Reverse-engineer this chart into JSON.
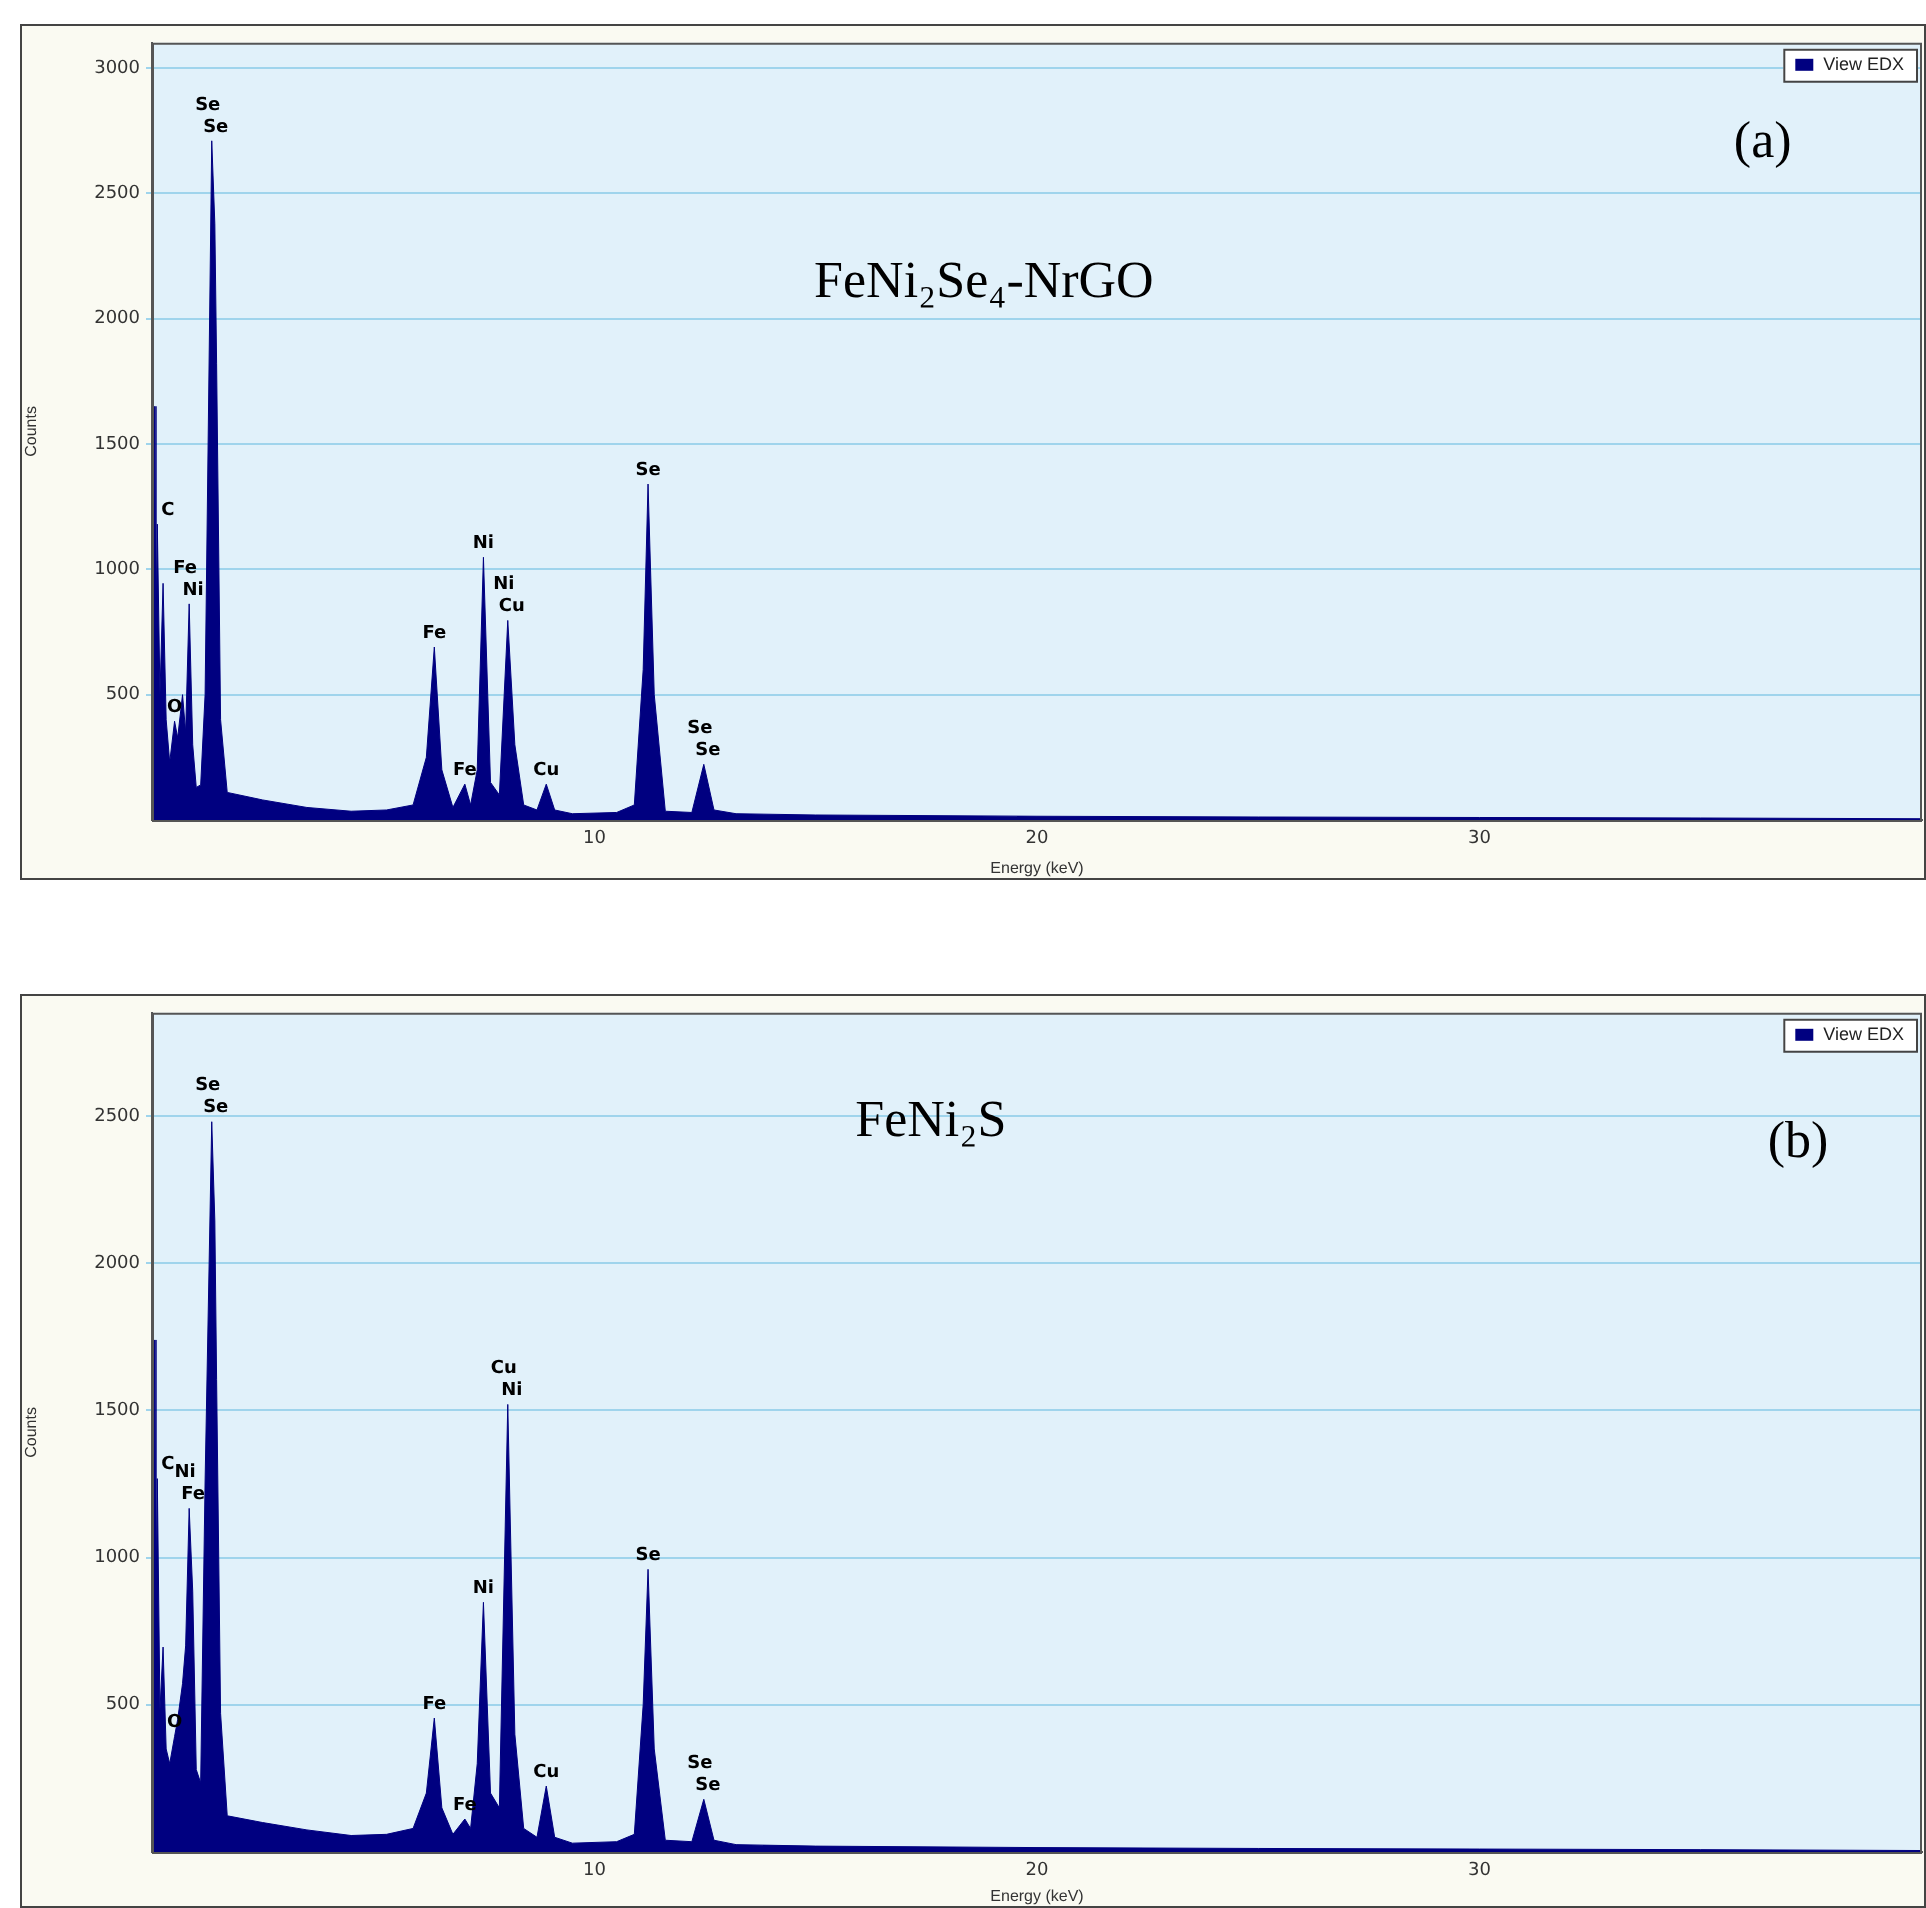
{
  "chart_data": [
    {
      "type": "area",
      "title": "FeNi₂Se₄-NrGO",
      "xlabel": "Energy (keV)",
      "ylabel": "Counts",
      "xlim": [
        0,
        40
      ],
      "xticks": [
        10,
        20,
        30
      ],
      "ylim": [
        0,
        3100
      ],
      "yticks": [
        500,
        1000,
        1500,
        2000,
        2500,
        3000
      ],
      "grid": "y",
      "legend": "top right",
      "marker": "none",
      "series": [
        {
          "name": "View EDX",
          "color": "#000080",
          "x": [
            0,
            0.06,
            0.09,
            0.12,
            0.18,
            0.25,
            0.32,
            0.4,
            0.51,
            0.58,
            0.69,
            0.76,
            0.84,
            0.92,
            1.0,
            1.1,
            1.2,
            1.35,
            1.42,
            1.46,
            1.55,
            1.7,
            2.5,
            3.5,
            4.5,
            5.3,
            5.9,
            6.2,
            6.38,
            6.55,
            6.8,
            7.07,
            7.2,
            7.35,
            7.49,
            7.65,
            7.85,
            8.04,
            8.2,
            8.4,
            8.7,
            8.91,
            9.1,
            9.5,
            10.5,
            10.9,
            11.1,
            11.21,
            11.35,
            11.6,
            12.2,
            12.47,
            12.7,
            13.2,
            15,
            20,
            25,
            30,
            35,
            40
          ],
          "values": [
            0,
            1650,
            700,
            1180,
            500,
            944,
            400,
            230,
            394,
            328,
            500,
            350,
            862,
            300,
            130,
            140,
            500,
            2709,
            2378,
            1822,
            400,
            110,
            80,
            50,
            35,
            40,
            60,
            250,
            690,
            200,
            50,
            143,
            60,
            200,
            1048,
            150,
            100,
            796,
            300,
            60,
            40,
            143,
            40,
            25,
            30,
            60,
            600,
            1340,
            500,
            35,
            30,
            222,
            40,
            25,
            20,
            15,
            12,
            10,
            8,
            5
          ]
        }
      ],
      "annotations": [
        "(a)",
        {
          "text": "Se",
          "x": 1.35,
          "y": 2709
        },
        {
          "text": "Se",
          "x": 1.35,
          "y": 2709
        },
        {
          "text": "C",
          "x": 0.12,
          "y": 1180
        },
        {
          "text": "Fe",
          "x": 0.84,
          "y": 862
        },
        {
          "text": "Ni",
          "x": 0.84,
          "y": 862
        },
        {
          "text": "O",
          "x": 0.51,
          "y": 394
        },
        {
          "text": "Fe",
          "x": 6.38,
          "y": 690
        },
        {
          "text": "Fe",
          "x": 7.07,
          "y": 143
        },
        {
          "text": "Ni",
          "x": 7.49,
          "y": 1048
        },
        {
          "text": "Ni",
          "x": 8.04,
          "y": 796
        },
        {
          "text": "Cu",
          "x": 8.04,
          "y": 796
        },
        {
          "text": "Cu",
          "x": 8.91,
          "y": 143
        },
        {
          "text": "Se",
          "x": 11.21,
          "y": 1340
        },
        {
          "text": "Se",
          "x": 12.47,
          "y": 222
        },
        {
          "text": "Se",
          "x": 12.47,
          "y": 222
        }
      ]
    },
    {
      "type": "area",
      "title": "FeNi₂S",
      "xlabel": "Energy (keV)",
      "ylabel": "Counts",
      "xlim": [
        0,
        40
      ],
      "xticks": [
        10,
        20,
        30
      ],
      "ylim": [
        0,
        2850
      ],
      "yticks": [
        500,
        1000,
        1500,
        2000,
        2500
      ],
      "grid": "y",
      "legend": "top right",
      "marker": "none",
      "series": [
        {
          "name": "View EDX",
          "color": "#000080",
          "x": [
            0,
            0.06,
            0.09,
            0.12,
            0.18,
            0.25,
            0.32,
            0.4,
            0.51,
            0.58,
            0.69,
            0.76,
            0.84,
            0.92,
            1.0,
            1.1,
            1.2,
            1.35,
            1.42,
            1.46,
            1.55,
            1.7,
            2.5,
            3.5,
            4.5,
            5.3,
            5.9,
            6.2,
            6.38,
            6.55,
            6.8,
            7.07,
            7.2,
            7.35,
            7.49,
            7.65,
            7.85,
            8.04,
            8.2,
            8.4,
            8.7,
            8.91,
            9.1,
            9.5,
            10.5,
            10.9,
            11.1,
            11.21,
            11.35,
            11.6,
            12.2,
            12.47,
            12.7,
            13.2,
            15,
            20,
            25,
            30,
            35,
            40
          ],
          "values": [
            0,
            1739,
            800,
            1268,
            482,
            696,
            350,
            300,
            392,
            450,
            572,
            700,
            1167,
            886,
            280,
            235,
            1260,
            2480,
            2143,
            1605,
            471,
            123,
            100,
            75,
            56,
            60,
            80,
            200,
            455,
            150,
            60,
            112,
            80,
            300,
            848,
            200,
            150,
            1520,
            400,
            80,
            50,
            224,
            50,
            30,
            35,
            60,
            500,
            960,
            350,
            40,
            35,
            179,
            40,
            25,
            20,
            15,
            12,
            10,
            8,
            5
          ]
        }
      ],
      "annotations": [
        "(b)",
        {
          "text": "Se",
          "x": 1.35,
          "y": 2480
        },
        {
          "text": "Se",
          "x": 1.35,
          "y": 2480
        },
        {
          "text": "C",
          "x": 0.12,
          "y": 1268
        },
        {
          "text": "Ni",
          "x": 0.84,
          "y": 1167
        },
        {
          "text": "Fe",
          "x": 0.84,
          "y": 1167
        },
        {
          "text": "O",
          "x": 0.51,
          "y": 392
        },
        {
          "text": "Fe",
          "x": 6.38,
          "y": 455
        },
        {
          "text": "Fe",
          "x": 7.07,
          "y": 112
        },
        {
          "text": "Ni",
          "x": 7.49,
          "y": 848
        },
        {
          "text": "Cu",
          "x": 8.04,
          "y": 1520
        },
        {
          "text": "Ni",
          "x": 8.04,
          "y": 1520
        },
        {
          "text": "Cu",
          "x": 8.91,
          "y": 224
        },
        {
          "text": "Se",
          "x": 11.21,
          "y": 960
        },
        {
          "text": "Se",
          "x": 12.47,
          "y": 179
        },
        {
          "text": "Se",
          "x": 12.47,
          "y": 179
        }
      ]
    }
  ]
}
